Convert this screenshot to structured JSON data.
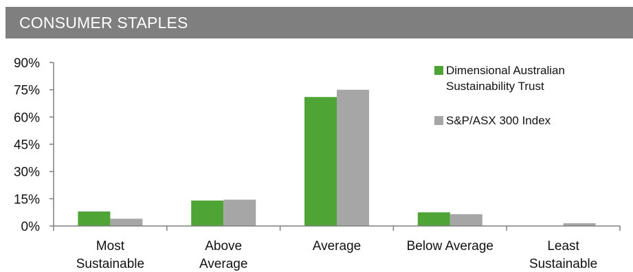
{
  "header": {
    "title": "CONSUMER STAPLES"
  },
  "colors": {
    "banner": "#7f7f7f",
    "series_green": "#4ea434",
    "series_grey": "#a6a6a6"
  },
  "chart_data": {
    "type": "bar",
    "title": "CONSUMER STAPLES",
    "categories": [
      [
        "Most",
        "Sustainable"
      ],
      [
        "Above",
        "Average"
      ],
      [
        "Average"
      ],
      [
        "Below Average"
      ],
      [
        "Least",
        "Sustainable"
      ]
    ],
    "series": [
      {
        "name": "Dimensional Australian Sustainability Trust",
        "legend_lines": [
          "Dimensional Australian",
          "Sustainability Trust"
        ],
        "color": "#4ea434",
        "values": [
          8,
          14,
          71,
          7.5,
          0
        ]
      },
      {
        "name": "S&P/ASX 300 Index",
        "legend_lines": [
          "S&P/ASX 300 Index"
        ],
        "color": "#a6a6a6",
        "values": [
          4,
          14.5,
          75,
          6.5,
          1.5
        ]
      }
    ],
    "y_ticks": [
      "0%",
      "15%",
      "30%",
      "45%",
      "60%",
      "75%",
      "90%"
    ],
    "ylim": [
      0,
      90
    ],
    "xlabel": "",
    "ylabel": "",
    "grid": false,
    "legend_position": "top-right"
  }
}
